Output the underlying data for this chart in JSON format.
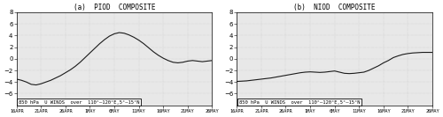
{
  "title_a": "(a)  PIOD  COMPOSITE",
  "title_b": "(b)  NIOD  COMPOSITE",
  "annotation": "850 hPa  U WINDS  over  110°–120°E,5°–15°N",
  "ylim": [
    -8,
    8
  ],
  "yticks": [
    -6,
    -4,
    -2,
    0,
    2,
    4,
    6,
    8
  ],
  "xtick_labels": [
    "16APR",
    "21APR",
    "26APR",
    "1MAY",
    "6MAY",
    "11MAY",
    "16MAY",
    "21MAY",
    "26MAY"
  ],
  "xtick_pos": [
    0,
    5,
    10,
    15,
    20,
    25,
    30,
    35,
    40
  ],
  "xmin": 0,
  "xmax": 40,
  "piod_y": [
    -3.5,
    -3.7,
    -4.0,
    -4.4,
    -4.5,
    -4.3,
    -4.0,
    -3.7,
    -3.3,
    -2.9,
    -2.4,
    -1.9,
    -1.3,
    -0.6,
    0.2,
    1.0,
    1.8,
    2.6,
    3.3,
    3.9,
    4.3,
    4.5,
    4.4,
    4.1,
    3.7,
    3.2,
    2.6,
    1.9,
    1.2,
    0.6,
    0.1,
    -0.3,
    -0.6,
    -0.7,
    -0.6,
    -0.4,
    -0.3,
    -0.4,
    -0.5,
    -0.4,
    -0.3
  ],
  "niod_y": [
    -3.9,
    -3.85,
    -3.8,
    -3.7,
    -3.6,
    -3.5,
    -3.4,
    -3.3,
    -3.15,
    -3.0,
    -2.85,
    -2.7,
    -2.55,
    -2.4,
    -2.3,
    -2.25,
    -2.3,
    -2.35,
    -2.3,
    -2.2,
    -2.1,
    -2.3,
    -2.5,
    -2.55,
    -2.5,
    -2.4,
    -2.3,
    -2.0,
    -1.6,
    -1.2,
    -0.7,
    -0.3,
    0.2,
    0.5,
    0.75,
    0.9,
    1.0,
    1.05,
    1.1,
    1.1,
    1.1
  ],
  "line_color": "#1a1a1a",
  "bg_color": "#e8e8e8",
  "grid_color": "#c0c0c0",
  "title_fontsize": 5.5,
  "tick_fontsize_y": 5.0,
  "tick_fontsize_x": 3.8,
  "annot_fontsize": 4.0,
  "linewidth": 0.8,
  "n_points": 41
}
